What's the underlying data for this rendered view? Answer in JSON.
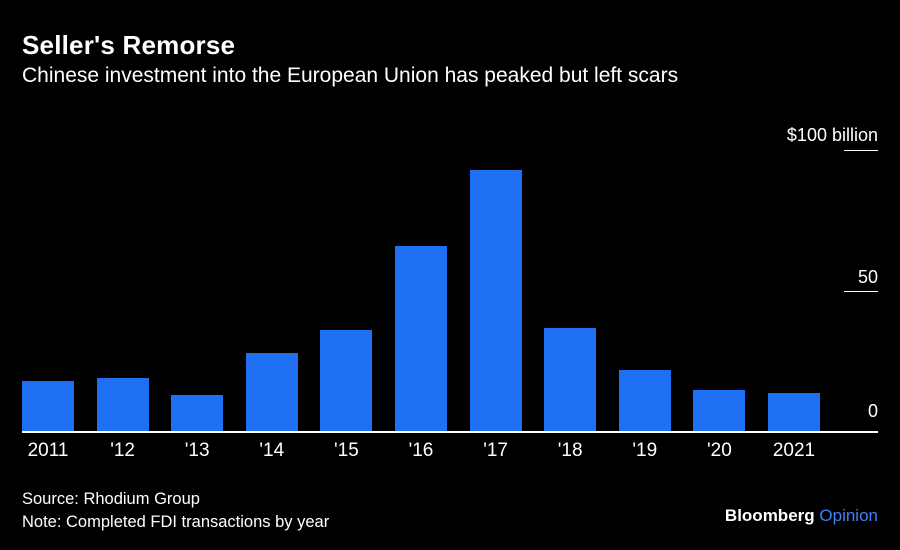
{
  "header": {
    "title": "Seller's Remorse",
    "subtitle": "Chinese investment into the European Union has peaked but left scars"
  },
  "chart_data": {
    "type": "bar",
    "categories": [
      "2011",
      "'12",
      "'13",
      "'14",
      "'15",
      "'16",
      "'17",
      "'18",
      "'19",
      "'20",
      "2021"
    ],
    "values": [
      18,
      19,
      13,
      28,
      36,
      66,
      93,
      37,
      22,
      15,
      14
    ],
    "title": "Seller's Remorse",
    "subtitle": "Chinese investment into the European Union has peaked but left scars",
    "xlabel": "",
    "ylabel": "$ billion",
    "ylim": [
      0,
      100
    ],
    "y_ticks": [
      {
        "label": "$100 billion",
        "value": 100
      },
      {
        "label": "50",
        "value": 50
      },
      {
        "label": "0",
        "value": 0
      }
    ],
    "grid": false,
    "legend": "none",
    "bar_color": "#1f6ff2"
  },
  "colors": {
    "background": "#000000",
    "text": "#ffffff",
    "bar": "#1f6ff2",
    "brand_accent": "#3e82f5"
  },
  "footer": {
    "source": "Source: Rhodium Group",
    "note": "Note: Completed FDI transactions by year",
    "brand_main": "Bloomberg",
    "brand_suffix": "Opinion"
  }
}
